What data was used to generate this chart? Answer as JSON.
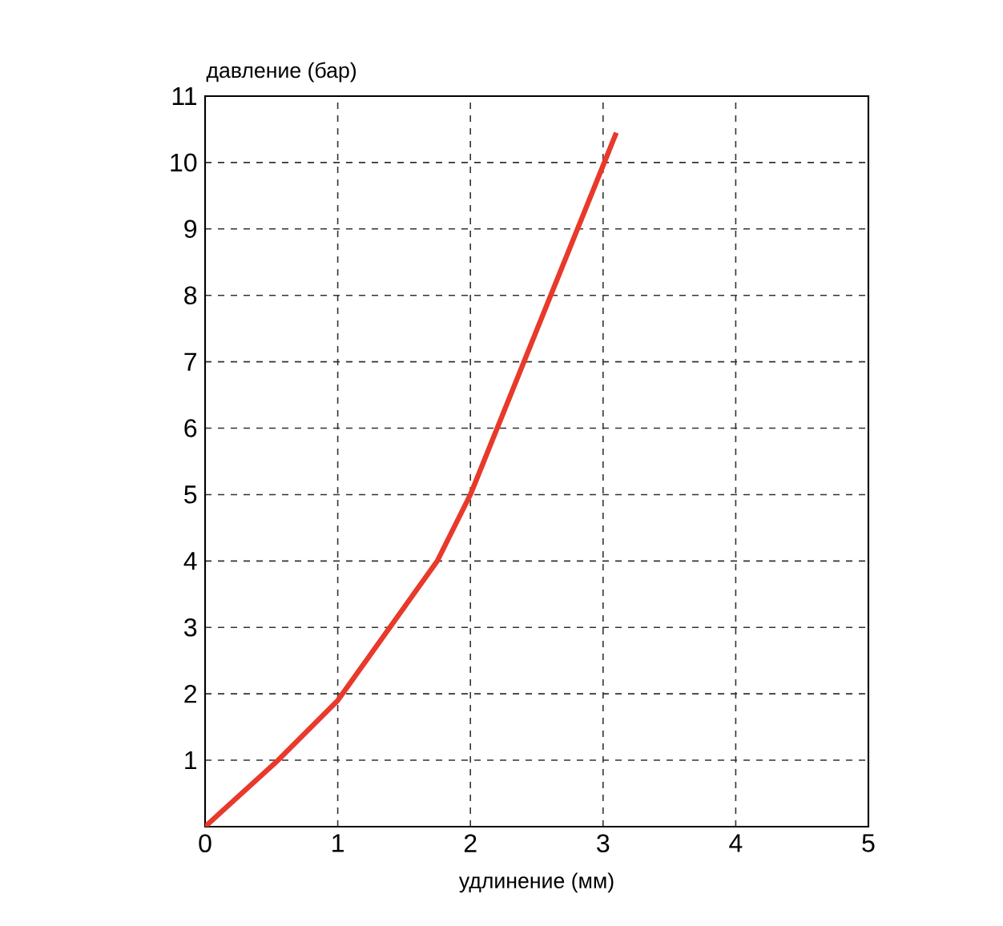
{
  "chart_data": {
    "type": "line",
    "xlabel": "удлинение (мм)",
    "ylabel": "давление (бар)",
    "xlim": [
      0,
      5
    ],
    "ylim": [
      0,
      11
    ],
    "xticks": [
      0,
      1,
      2,
      3,
      4,
      5
    ],
    "yticks": [
      {
        "value": 0,
        "label": null
      },
      1,
      2,
      3,
      4,
      5,
      6,
      7,
      8,
      9,
      10,
      11
    ],
    "grid": true,
    "marker": "none",
    "line_style": "solid",
    "series": [
      {
        "color": "#e8392b",
        "x": [
          0,
          0.55,
          1,
          1.75,
          2,
          3.1
        ],
        "values": [
          0,
          1,
          1.9,
          4,
          5,
          10.45
        ]
      }
    ]
  }
}
